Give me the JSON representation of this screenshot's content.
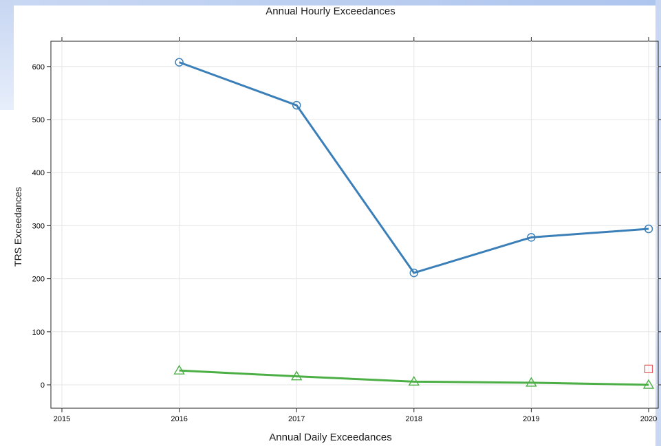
{
  "chart_data": {
    "type": "line",
    "title": "Annual Hourly Exceedances",
    "xlabel": "Annual Daily Exceedances",
    "ylabel": "TRS Exceedances",
    "x": [
      2016,
      2017,
      2018,
      2019,
      2020
    ],
    "xlim": [
      2015,
      2020
    ],
    "xticks": [
      "2015",
      "2016",
      "2017",
      "2018",
      "2019",
      "2020"
    ],
    "ylim": [
      -40,
      650
    ],
    "yticks": [
      "0",
      "100",
      "200",
      "300",
      "400",
      "500",
      "600"
    ],
    "grid": true,
    "series": [
      {
        "marker": "circle",
        "color": "#3b7fb8",
        "values": [
          608,
          527,
          211,
          278,
          294
        ]
      },
      {
        "marker": "triangle",
        "color": "#4caf45",
        "values": [
          27,
          16,
          6,
          4,
          0
        ]
      }
    ],
    "extra_points": [
      {
        "marker": "square",
        "color": "#e8555a",
        "x": 2020,
        "y": 30
      }
    ]
  }
}
